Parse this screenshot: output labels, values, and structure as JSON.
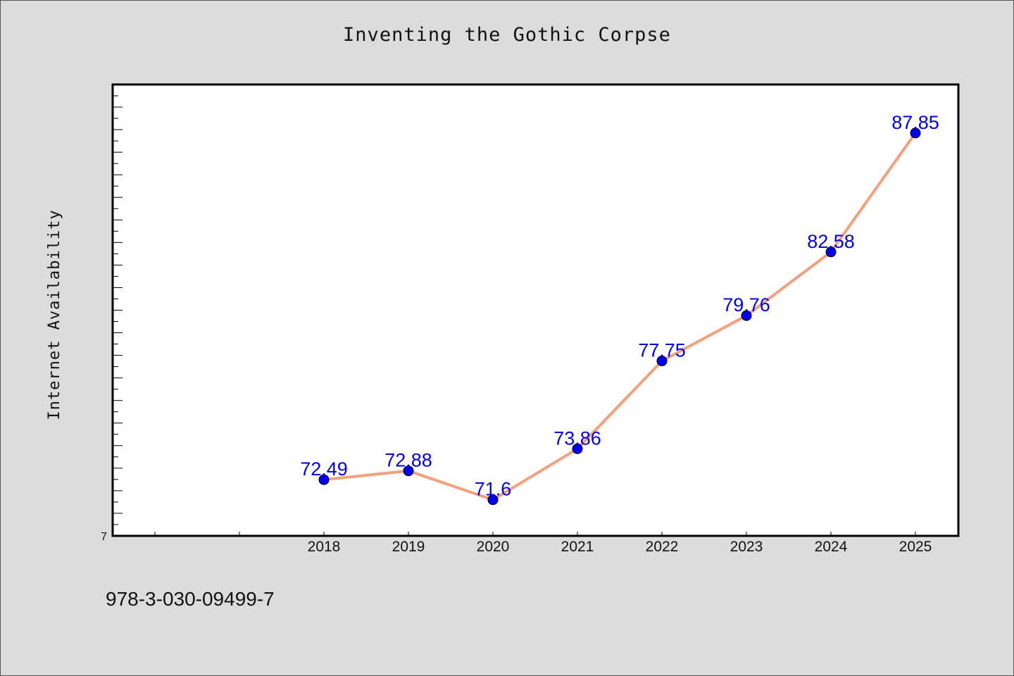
{
  "chart_data": {
    "type": "line",
    "title": "Inventing the Gothic Corpse",
    "xlabel": "",
    "ylabel": "Internet Availability",
    "x": [
      "2018",
      "2019",
      "2020",
      "2021",
      "2022",
      "2023",
      "2024",
      "2025"
    ],
    "series": [
      {
        "values": [
          72.49,
          72.88,
          71.6,
          73.86,
          77.75,
          79.76,
          82.58,
          87.85
        ],
        "labels": [
          "72.49",
          "72.88",
          "71.6",
          "73.86",
          "77.75",
          "79.76",
          "82.58",
          "87.85"
        ]
      }
    ],
    "y_tick_labels": [
      "7"
    ],
    "ylim": [
      70.0,
      90.0
    ],
    "grid": false,
    "colors": {
      "line": "#f4a07c",
      "marker": "#0000ee",
      "data_label": "#0000ee"
    }
  },
  "footer": {
    "isbn": "978-3-030-09499-7"
  }
}
